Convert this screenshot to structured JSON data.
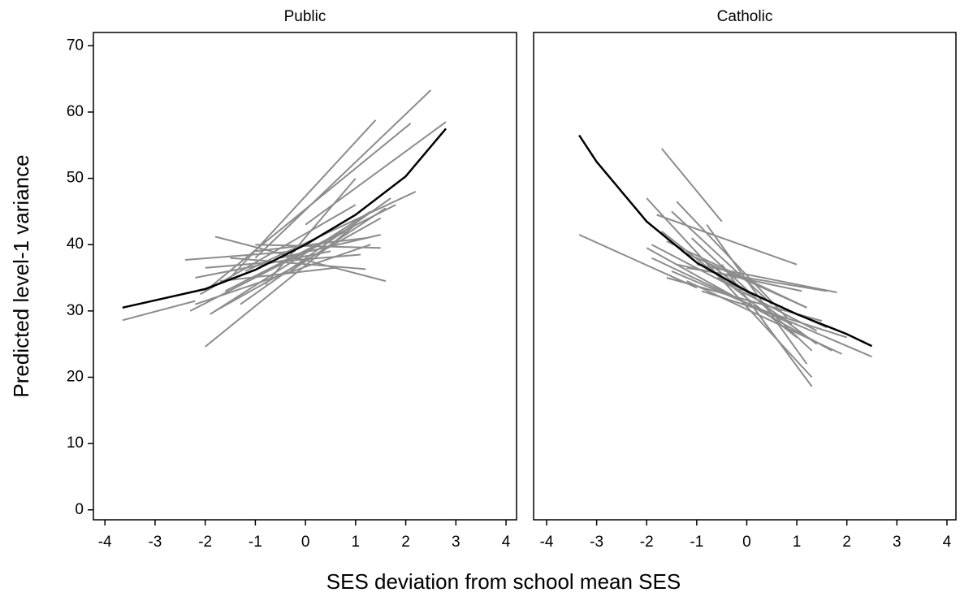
{
  "chart_data": [
    {
      "type": "line",
      "title": "Public",
      "ylabel": "Predicted level-1 variance",
      "xlabel": "SES deviation from school mean SES",
      "xlim": [
        -4.23,
        4.21
      ],
      "ylim": [
        -1.5,
        72
      ],
      "xticks": [
        -4,
        -3,
        -2,
        -1,
        0,
        1,
        2,
        3,
        4
      ],
      "yticks": [
        0,
        10,
        20,
        30,
        40,
        50,
        60,
        70
      ],
      "series": [
        {
          "color": "#8c8c8c",
          "x": [
            -3.65,
            -2.2
          ],
          "values": [
            28.6,
            31.5
          ]
        },
        {
          "color": "#8c8c8c",
          "x": [
            -2.4,
            -0.2
          ],
          "values": [
            37.7,
            39
          ]
        },
        {
          "color": "#8c8c8c",
          "x": [
            -2.0,
            1.0
          ],
          "values": [
            24.6,
            43
          ]
        },
        {
          "color": "#8c8c8c",
          "x": [
            -2.2,
            1.3
          ],
          "values": [
            31,
            40
          ]
        },
        {
          "color": "#8c8c8c",
          "x": [
            -1.8,
            1.6
          ],
          "values": [
            41.2,
            34.5
          ]
        },
        {
          "color": "#8c8c8c",
          "x": [
            -1.5,
            1.4
          ],
          "values": [
            35,
            58.8
          ]
        },
        {
          "color": "#8c8c8c",
          "x": [
            -1.0,
            2.5
          ],
          "values": [
            38,
            63.3
          ]
        },
        {
          "color": "#8c8c8c",
          "x": [
            -2.0,
            2.1
          ],
          "values": [
            33,
            58.3
          ]
        },
        {
          "color": "#8c8c8c",
          "x": [
            -0.5,
            1.5
          ],
          "values": [
            38,
            41.5
          ]
        },
        {
          "color": "#8c8c8c",
          "x": [
            -1.8,
            1.5
          ],
          "values": [
            30,
            44
          ]
        },
        {
          "color": "#8c8c8c",
          "x": [
            -2.0,
            1.1
          ],
          "values": [
            36.5,
            38.5
          ]
        },
        {
          "color": "#8c8c8c",
          "x": [
            -1.5,
            1.2
          ],
          "values": [
            38,
            36.3
          ]
        },
        {
          "color": "#8c8c8c",
          "x": [
            -1.2,
            2.2
          ],
          "values": [
            36,
            48
          ]
        },
        {
          "color": "#8c8c8c",
          "x": [
            -2.2,
            0.5
          ],
          "values": [
            35,
            39
          ]
        },
        {
          "color": "#8c8c8c",
          "x": [
            -1.6,
            1.8
          ],
          "values": [
            33,
            46
          ]
        },
        {
          "color": "#8c8c8c",
          "x": [
            0,
            2.8
          ],
          "values": [
            43,
            58.5
          ]
        },
        {
          "color": "#8c8c8c",
          "x": [
            -1.3,
            1.7
          ],
          "values": [
            31,
            47
          ]
        },
        {
          "color": "#8c8c8c",
          "x": [
            -0.8,
            1.0
          ],
          "values": [
            34,
            50
          ]
        },
        {
          "color": "#8c8c8c",
          "x": [
            -2.3,
            0.8
          ],
          "values": [
            30,
            42
          ]
        },
        {
          "color": "#8c8c8c",
          "x": [
            -1.0,
            1.5
          ],
          "values": [
            40,
            39.5
          ]
        },
        {
          "color": "#8c8c8c",
          "x": [
            -1.9,
            1.3
          ],
          "values": [
            29.5,
            45
          ]
        },
        {
          "color": "#8c8c8c",
          "x": [
            -0.3,
            1.6
          ],
          "values": [
            36,
            45.5
          ]
        },
        {
          "color": "#8c8c8c",
          "x": [
            -1.7,
            0.6
          ],
          "values": [
            34.5,
            36.5
          ]
        },
        {
          "color": "#8c8c8c",
          "x": [
            -2.1,
            1.0
          ],
          "values": [
            32.5,
            46
          ]
        },
        {
          "color": "#8c8c8c",
          "x": [
            -1.0,
            1.2
          ],
          "values": [
            39,
            41
          ]
        },
        {
          "color": "#000000",
          "x": [
            -3.65,
            -3,
            -2,
            -1,
            0,
            1,
            2,
            2.8
          ],
          "values": [
            30.5,
            31.6,
            33.3,
            36.2,
            40,
            44.5,
            50.3,
            57.5
          ]
        }
      ]
    },
    {
      "type": "line",
      "title": "Catholic",
      "xlim": [
        -4.26,
        4.18
      ],
      "ylim": [
        -1.5,
        72
      ],
      "xticks": [
        -4,
        -3,
        -2,
        -1,
        0,
        1,
        2,
        3,
        4
      ],
      "series": [
        {
          "color": "#8c8c8c",
          "x": [
            -3.35,
            -1.0
          ],
          "values": [
            41.5,
            33.5
          ]
        },
        {
          "color": "#8c8c8c",
          "x": [
            -1.7,
            -0.5
          ],
          "values": [
            54.5,
            43.5
          ]
        },
        {
          "color": "#8c8c8c",
          "x": [
            -2.0,
            1.3
          ],
          "values": [
            47,
            20
          ]
        },
        {
          "color": "#8c8c8c",
          "x": [
            -1.0,
            1.8
          ],
          "values": [
            37,
            32.8
          ]
        },
        {
          "color": "#8c8c8c",
          "x": [
            -1.9,
            1.4
          ],
          "values": [
            40,
            27
          ]
        },
        {
          "color": "#8c8c8c",
          "x": [
            -0.5,
            1.3
          ],
          "values": [
            37,
            18.6
          ]
        },
        {
          "color": "#8c8c8c",
          "x": [
            -1.5,
            2.5
          ],
          "values": [
            36,
            23.1
          ]
        },
        {
          "color": "#8c8c8c",
          "x": [
            -1.8,
            1.0
          ],
          "values": [
            44.5,
            37
          ]
        },
        {
          "color": "#8c8c8c",
          "x": [
            -1.2,
            1.6
          ],
          "values": [
            36.5,
            33
          ]
        },
        {
          "color": "#8c8c8c",
          "x": [
            -2.0,
            1.7
          ],
          "values": [
            39.5,
            24
          ]
        },
        {
          "color": "#8c8c8c",
          "x": [
            -1.4,
            0.8
          ],
          "values": [
            46.5,
            29
          ]
        },
        {
          "color": "#8c8c8c",
          "x": [
            -1.2,
            1.9
          ],
          "values": [
            34.5,
            23.5
          ]
        },
        {
          "color": "#8c8c8c",
          "x": [
            -0.8,
            1.2
          ],
          "values": [
            43,
            22
          ]
        },
        {
          "color": "#8c8c8c",
          "x": [
            -1.6,
            1.5
          ],
          "values": [
            35,
            28.5
          ]
        },
        {
          "color": "#8c8c8c",
          "x": [
            -1.3,
            1.2
          ],
          "values": [
            39,
            30.5
          ]
        },
        {
          "color": "#8c8c8c",
          "x": [
            -1.7,
            1.0
          ],
          "values": [
            42,
            26
          ]
        },
        {
          "color": "#8c8c8c",
          "x": [
            -1.0,
            1.4
          ],
          "values": [
            38.5,
            25
          ]
        },
        {
          "color": "#8c8c8c",
          "x": [
            -1.5,
            0.5
          ],
          "values": [
            45,
            31
          ]
        },
        {
          "color": "#8c8c8c",
          "x": [
            -0.6,
            1.6
          ],
          "values": [
            35,
            27.5
          ]
        },
        {
          "color": "#8c8c8c",
          "x": [
            -1.9,
            0.9
          ],
          "values": [
            38,
            28
          ]
        },
        {
          "color": "#8c8c8c",
          "x": [
            -1.1,
            1.3
          ],
          "values": [
            41,
            24
          ]
        },
        {
          "color": "#8c8c8c",
          "x": [
            -1.4,
            1.1
          ],
          "values": [
            37,
            33
          ]
        },
        {
          "color": "#8c8c8c",
          "x": [
            -0.9,
            2.0
          ],
          "values": [
            33,
            26
          ]
        },
        {
          "color": "#8c8c8c",
          "x": [
            -1.6,
            1.2
          ],
          "values": [
            40.5,
            30.5
          ]
        },
        {
          "color": "#000000",
          "x": [
            -3.35,
            -3,
            -2,
            -1,
            0,
            1,
            2,
            2.5
          ],
          "values": [
            56.5,
            52.5,
            43.5,
            37.3,
            33,
            29.5,
            26.5,
            24.7
          ]
        }
      ]
    }
  ]
}
